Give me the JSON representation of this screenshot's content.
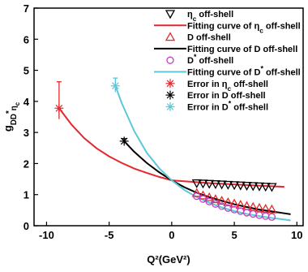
{
  "chart_data": {
    "type": "scatter",
    "xlabel": "Q²(GeV²)",
    "ylabel": "g_{DD*η_c}",
    "xlim": [
      -11,
      10.5
    ],
    "ylim": [
      0,
      7
    ],
    "x_ticks": [
      -10,
      -5,
      0,
      5,
      10
    ],
    "y_ticks": [
      0,
      1,
      2,
      3,
      4,
      5,
      6,
      7
    ],
    "grid": false,
    "legend_position": "top-right",
    "colors": {
      "red": "#e8262d",
      "black": "#000000",
      "cyan": "#5bc8d8",
      "magenta": "#c040c0"
    },
    "legend": [
      "η_c off-shell",
      "Fitting curve of η_c off-shell",
      "D off-shell",
      "Fitting curve of D off-shell",
      "D* off-shell",
      "Fitting curve of D* off-shell",
      "Error in η_c off-shell",
      "Error in D off-shell",
      "Error in D* off-shell"
    ],
    "series": [
      {
        "name": "η_c off-shell",
        "kind": "points",
        "marker": "triangle-down",
        "color": "#000000",
        "x": [
          2.0,
          2.5,
          3.0,
          3.5,
          4.0,
          4.5,
          5.0,
          5.5,
          6.0,
          6.5,
          7.0,
          7.5,
          8.0
        ],
        "y": [
          1.37,
          1.36,
          1.35,
          1.34,
          1.33,
          1.32,
          1.31,
          1.3,
          1.29,
          1.28,
          1.27,
          1.26,
          1.25
        ]
      },
      {
        "name": "Fitting curve of η_c off-shell",
        "kind": "curve",
        "color": "#e8262d",
        "x": [
          -9,
          -8,
          -7,
          -6,
          -5,
          -4,
          -3,
          -2,
          -1,
          0,
          1,
          2,
          3,
          4,
          5,
          6,
          7,
          8,
          9
        ],
        "y": [
          3.78,
          3.25,
          2.82,
          2.49,
          2.23,
          2.02,
          1.84,
          1.7,
          1.57,
          1.46,
          1.43,
          1.4,
          1.37,
          1.35,
          1.33,
          1.31,
          1.29,
          1.27,
          1.25
        ]
      },
      {
        "name": "D off-shell",
        "kind": "points",
        "marker": "triangle-up",
        "color": "#e8262d",
        "x": [
          2.0,
          2.5,
          3.0,
          3.5,
          4.0,
          4.5,
          5.0,
          5.5,
          6.0,
          6.5,
          7.0,
          7.5,
          8.0
        ],
        "y": [
          1.05,
          0.97,
          0.91,
          0.85,
          0.8,
          0.75,
          0.71,
          0.67,
          0.63,
          0.6,
          0.57,
          0.54,
          0.52
        ]
      },
      {
        "name": "Fitting curve of D off-shell",
        "kind": "curve",
        "color": "#000000",
        "x": [
          -3.8,
          -3,
          -2,
          -1,
          0,
          1,
          2,
          3,
          4,
          5,
          6,
          7,
          8,
          9,
          9.5
        ],
        "y": [
          2.72,
          2.38,
          2.02,
          1.72,
          1.46,
          1.24,
          1.06,
          0.92,
          0.8,
          0.69,
          0.6,
          0.52,
          0.46,
          0.4,
          0.37
        ]
      },
      {
        "name": "D* off-shell",
        "kind": "points",
        "marker": "circle",
        "color": "#c040c0",
        "x": [
          2.0,
          2.5,
          3.0,
          3.5,
          4.0,
          4.5,
          5.0,
          5.5,
          6.0,
          6.5,
          7.0,
          7.5,
          8.0
        ],
        "y": [
          0.95,
          0.86,
          0.78,
          0.7,
          0.63,
          0.57,
          0.52,
          0.47,
          0.42,
          0.38,
          0.34,
          0.31,
          0.28
        ]
      },
      {
        "name": "Fitting curve of D* off-shell",
        "kind": "curve",
        "color": "#5bc8d8",
        "x": [
          -4.5,
          -4,
          -3,
          -2,
          -1,
          0,
          1,
          2,
          3,
          4,
          5,
          6,
          7,
          8,
          9,
          9.5
        ],
        "y": [
          4.5,
          3.95,
          3.05,
          2.35,
          1.85,
          1.46,
          1.15,
          0.92,
          0.74,
          0.59,
          0.47,
          0.38,
          0.31,
          0.25,
          0.2,
          0.17
        ]
      },
      {
        "name": "Error in η_c off-shell",
        "kind": "errorpoint",
        "marker": "asterisk",
        "color": "#e8262d",
        "x": [
          -9
        ],
        "y": [
          3.78
        ],
        "err_plus": [
          0.85
        ],
        "err_minus": [
          0.35
        ]
      },
      {
        "name": "Error in D off-shell",
        "kind": "errorpoint",
        "marker": "asterisk",
        "color": "#000000",
        "x": [
          -3.8
        ],
        "y": [
          2.72
        ],
        "err_plus": [
          0.08
        ],
        "err_minus": [
          0.08
        ]
      },
      {
        "name": "Error in D* off-shell",
        "kind": "errorpoint",
        "marker": "asterisk",
        "color": "#5bc8d8",
        "x": [
          -4.5
        ],
        "y": [
          4.5
        ],
        "err_plus": [
          0.25
        ],
        "err_minus": [
          0.2
        ]
      }
    ]
  }
}
